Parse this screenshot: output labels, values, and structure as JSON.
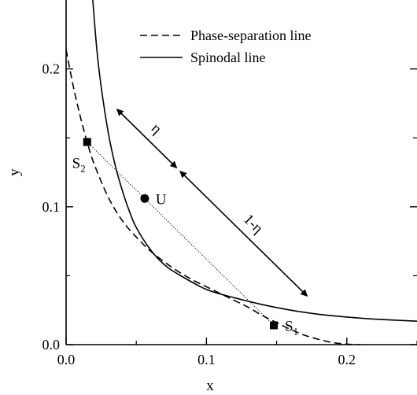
{
  "chart_data": {
    "type": "line",
    "xlabel": "x",
    "ylabel": "y",
    "xlim": [
      0,
      0.25
    ],
    "ylim": [
      0,
      0.25
    ],
    "xticks": [
      0.0,
      0.1,
      0.2
    ],
    "yticks": [
      0.0,
      0.1,
      0.2
    ],
    "xtick_labels": [
      "0.0",
      "0.1",
      "0.2"
    ],
    "ytick_labels": [
      "0.0",
      "0.1",
      "0.2"
    ],
    "grid": false,
    "legend_position": "top-right",
    "series": [
      {
        "name": "Phase-separation line",
        "style": "dashed",
        "color": "#000000",
        "x": [
          0.0,
          0.005,
          0.01,
          0.015,
          0.02,
          0.03,
          0.04,
          0.05,
          0.06,
          0.07,
          0.08,
          0.09,
          0.1,
          0.11,
          0.12,
          0.13,
          0.14,
          0.15,
          0.16,
          0.17,
          0.18,
          0.19,
          0.2,
          0.21
        ],
        "y": [
          0.214,
          0.188,
          0.166,
          0.147,
          0.131,
          0.107,
          0.09,
          0.078,
          0.068,
          0.06,
          0.053,
          0.047,
          0.042,
          0.037,
          0.032,
          0.027,
          0.021,
          0.016,
          0.011,
          0.0068,
          0.0038,
          0.0015,
          0.0003,
          0.0
        ]
      },
      {
        "name": "Spinodal line",
        "style": "solid",
        "color": "#000000",
        "x": [
          0.019,
          0.022,
          0.025,
          0.03,
          0.035,
          0.04,
          0.045,
          0.05,
          0.06,
          0.07,
          0.08,
          0.1,
          0.12,
          0.14,
          0.16,
          0.18,
          0.2,
          0.22,
          0.25
        ],
        "y": [
          0.25,
          0.213,
          0.187,
          0.154,
          0.13,
          0.112,
          0.097,
          0.085,
          0.069,
          0.058,
          0.051,
          0.04,
          0.034,
          0.029,
          0.025,
          0.022,
          0.02,
          0.0185,
          0.017
        ]
      }
    ],
    "points": [
      {
        "label": "S",
        "sub": "2",
        "x": 0.015,
        "y": 0.147,
        "marker": "square",
        "label_side": "left-below"
      },
      {
        "label": "U",
        "x": 0.056,
        "y": 0.106,
        "marker": "circle",
        "label_side": "right"
      },
      {
        "label": "S",
        "sub": "1",
        "x": 0.148,
        "y": 0.014,
        "marker": "square",
        "label_side": "right"
      }
    ],
    "tie_line": {
      "style": "dotted",
      "from": [
        0.015,
        0.147
      ],
      "to": [
        0.148,
        0.014
      ]
    },
    "annotations": [
      {
        "text": "η",
        "from": [
          0.035,
          0.172
        ],
        "to": [
          0.08,
          0.127
        ]
      },
      {
        "text": "1-η",
        "from": [
          0.08,
          0.127
        ],
        "to": [
          0.173,
          0.034
        ]
      }
    ]
  }
}
